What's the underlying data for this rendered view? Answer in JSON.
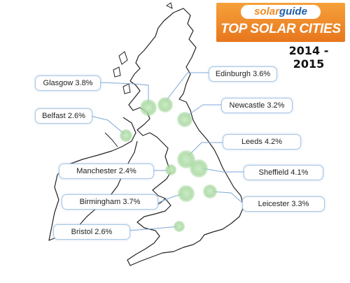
{
  "header": {
    "logo_solar": "solar",
    "logo_guide": "guide",
    "title": "TOP SOLAR CITIES",
    "years": "2014 - 2015"
  },
  "cities": [
    {
      "name": "Glasgow",
      "value": "3.8%"
    },
    {
      "name": "Edinburgh",
      "value": "3.6%"
    },
    {
      "name": "Belfast",
      "value": "2.6%"
    },
    {
      "name": "Newcastle",
      "value": "3.2%"
    },
    {
      "name": "Leeds",
      "value": "4.2%"
    },
    {
      "name": "Manchester",
      "value": "2.4%"
    },
    {
      "name": "Sheffield",
      "value": "4.1%"
    },
    {
      "name": "Birmingham",
      "value": "3.7%"
    },
    {
      "name": "Leicester",
      "value": "3.3%"
    },
    {
      "name": "Bristol",
      "value": "2.6%"
    }
  ],
  "colors": {
    "banner": "#f08a24",
    "logo_blue": "#1f5fa8",
    "marker": "#a8d8a0",
    "label_border": "#a9c7e6",
    "connector": "#7da7d9",
    "map_outline": "#222222"
  }
}
